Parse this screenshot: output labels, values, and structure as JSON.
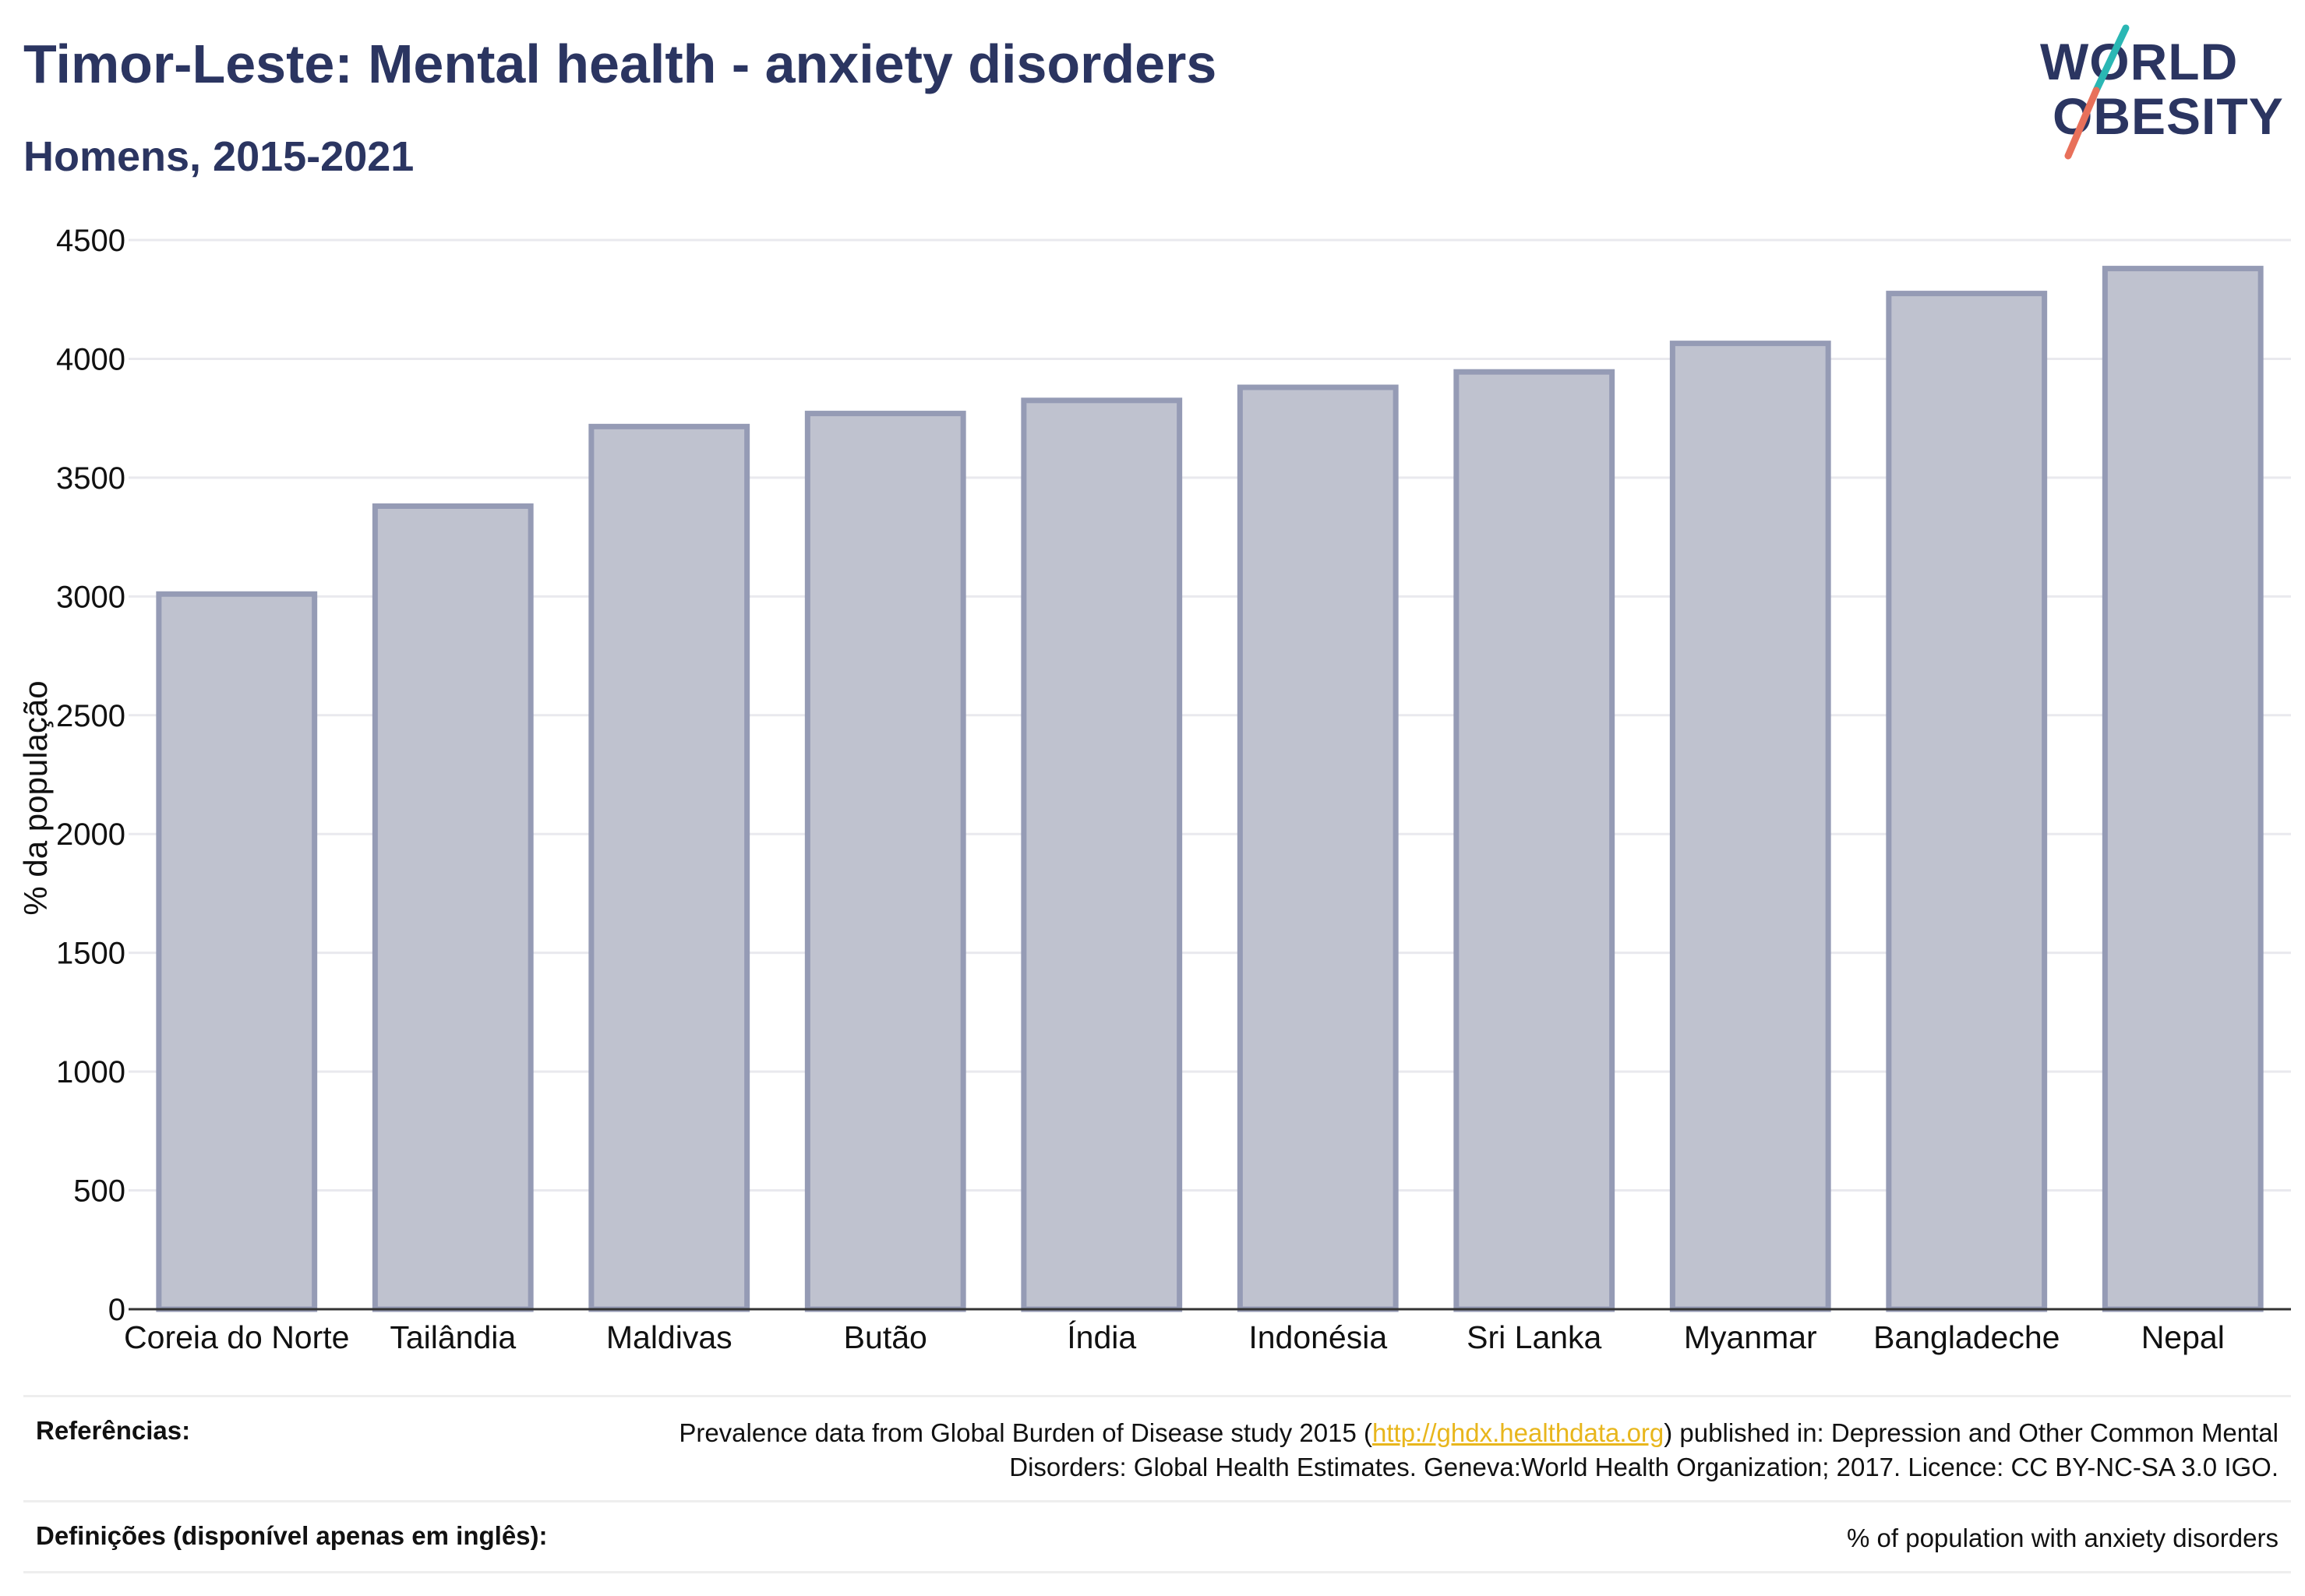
{
  "header": {
    "title": "Timor-Leste: Mental health - anxiety disorders",
    "subtitle": "Homens, 2015-2021"
  },
  "logo": {
    "line1": "WORLD",
    "line2": "OBESITY",
    "colors": {
      "text": "#2b3561",
      "slash_teal": "#2ab7b4",
      "slash_coral": "#e8705a"
    }
  },
  "chart_data": {
    "type": "bar",
    "categories": [
      "Coreia do Norte",
      "Tailândia",
      "Maldivas",
      "Butão",
      "Índia",
      "Indonésia",
      "Sri Lanka",
      "Myanmar",
      "Bangladeche",
      "Nepal"
    ],
    "values": [
      3010,
      3380,
      3715,
      3770,
      3825,
      3880,
      3945,
      4065,
      4275,
      4380
    ],
    "ylabel": "% da população",
    "ylim": [
      0,
      4500
    ],
    "yticks": [
      0,
      500,
      1000,
      1500,
      2000,
      2500,
      3000,
      3500,
      4000,
      4500
    ],
    "grid": true,
    "colors": {
      "bar_fill": "#bfc2cf",
      "bar_stroke": "#959bb5",
      "axis": "#333333",
      "grid": "#e9e9ee"
    }
  },
  "footer": {
    "references_label": "Referências:",
    "references_before_link": "Prevalence data from Global Burden of Disease study 2015 (",
    "references_link": "http://ghdx.healthdata.org",
    "references_after_link": ") published in: Depression and Other Common Mental Disorders: Global Health Estimates. Geneva:World Health Organization; 2017. Licence: CC BY-NC-SA 3.0 IGO.",
    "definitions_label": "Definições (disponível apenas em inglês):",
    "definitions_text": "% of population with anxiety disorders"
  }
}
